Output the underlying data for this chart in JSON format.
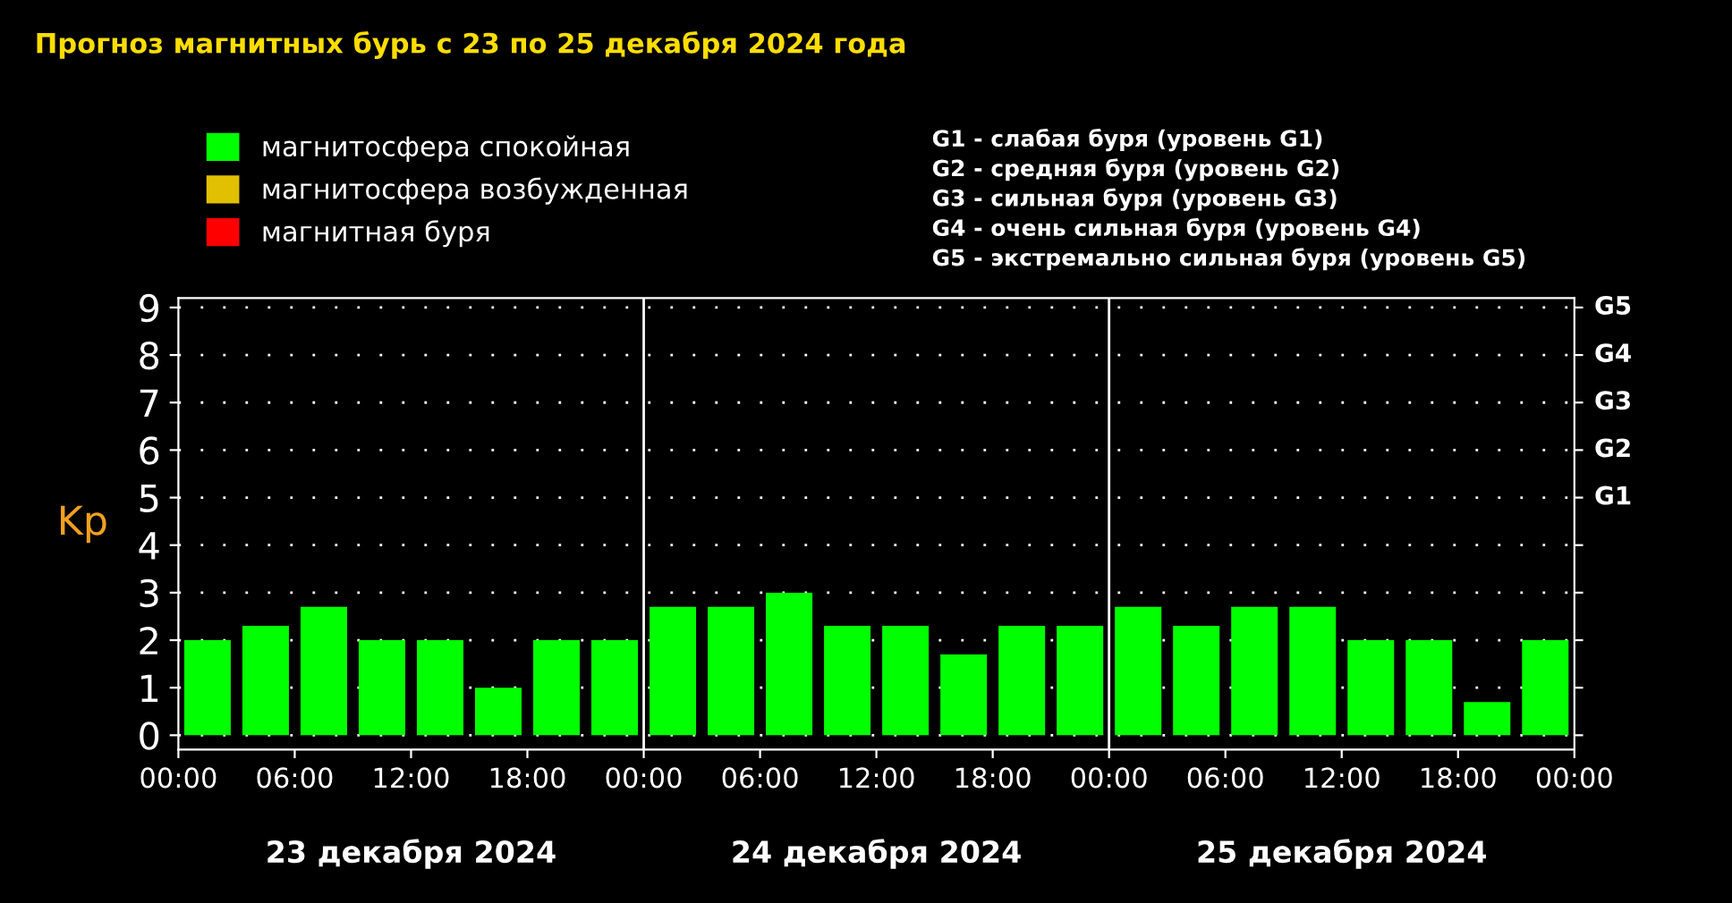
{
  "chart_data": {
    "type": "bar",
    "title": "Прогноз магнитных бурь с 23 по 25 декабря 2024 года",
    "ylabel": "Kp",
    "x": [
      "2024-12-23T01:30",
      "2024-12-23T04:30",
      "2024-12-23T07:30",
      "2024-12-23T10:30",
      "2024-12-23T13:30",
      "2024-12-23T16:30",
      "2024-12-23T19:30",
      "2024-12-23T22:30",
      "2024-12-24T01:30",
      "2024-12-24T04:30",
      "2024-12-24T07:30",
      "2024-12-24T10:30",
      "2024-12-24T13:30",
      "2024-12-24T16:30",
      "2024-12-24T19:30",
      "2024-12-24T22:30",
      "2024-12-25T01:30",
      "2024-12-25T04:30",
      "2024-12-25T07:30",
      "2024-12-25T10:30",
      "2024-12-25T13:30",
      "2024-12-25T16:30",
      "2024-12-25T19:30",
      "2024-12-25T22:30"
    ],
    "series": [
      {
        "name": "магнитосфера спокойная",
        "color": "#00ff00",
        "values": [
          2,
          2.3,
          2.7,
          2,
          2,
          1,
          2,
          2,
          2.7,
          2.7,
          3,
          2.3,
          2.3,
          1.7,
          2.3,
          2.3,
          2.7,
          2.3,
          2.7,
          2.7,
          2,
          2,
          0.7,
          2
        ]
      },
      {
        "name": "магнитосфера возбужденная",
        "color": "#e0c000",
        "values": [
          null,
          null,
          null,
          null,
          null,
          null,
          null,
          null,
          null,
          null,
          null,
          null,
          null,
          null,
          null,
          null,
          null,
          null,
          null,
          null,
          null,
          null,
          null,
          null
        ]
      },
      {
        "name": "магнитная буря",
        "color": "#ff0000",
        "values": [
          null,
          null,
          null,
          null,
          null,
          null,
          null,
          null,
          null,
          null,
          null,
          null,
          null,
          null,
          null,
          null,
          null,
          null,
          null,
          null,
          null,
          null,
          null,
          null
        ]
      }
    ],
    "xlim": [
      "2024-12-23T00:00",
      "2024-12-26T00:00"
    ],
    "xticks": [
      {
        "value": "2024-12-23T00:00",
        "label": "00:00"
      },
      {
        "value": "2024-12-23T06:00",
        "label": "06:00"
      },
      {
        "value": "2024-12-23T12:00",
        "label": "12:00"
      },
      {
        "value": "2024-12-23T18:00",
        "label": "18:00"
      },
      {
        "value": "2024-12-24T00:00",
        "label": "00:00"
      },
      {
        "value": "2024-12-24T06:00",
        "label": "06:00"
      },
      {
        "value": "2024-12-24T12:00",
        "label": "12:00"
      },
      {
        "value": "2024-12-24T18:00",
        "label": "18:00"
      },
      {
        "value": "2024-12-25T00:00",
        "label": "00:00"
      },
      {
        "value": "2024-12-25T06:00",
        "label": "06:00"
      },
      {
        "value": "2024-12-25T12:00",
        "label": "12:00"
      },
      {
        "value": "2024-12-25T18:00",
        "label": "18:00"
      },
      {
        "value": "2024-12-26T00:00",
        "label": "00:00"
      }
    ],
    "ylim": [
      -0.3,
      9.2
    ],
    "yticks": [
      0,
      1,
      2,
      3,
      4,
      5,
      6,
      7,
      8,
      9
    ],
    "ref_lines": [
      {
        "axis": "x",
        "value": "2024-12-24T00:00",
        "color": "#ffffff"
      },
      {
        "axis": "x",
        "value": "2024-12-25T00:00",
        "color": "#ffffff"
      }
    ],
    "annotations": [
      "G1 - слабая буря (уровень G1)",
      "G2 - средняя буря (уровень G2)",
      "G3 - сильная буря (уровень G3)",
      "G4 - очень сильная буря (уровень G4)",
      "G5 - экстремально сильная буря (уровень G5)",
      "23 декабря 2024",
      "24 декабря 2024",
      "25 декабря 2024",
      "G1",
      "G2",
      "G3",
      "G4",
      "G5"
    ],
    "grid": "y",
    "legend": "top left"
  }
}
